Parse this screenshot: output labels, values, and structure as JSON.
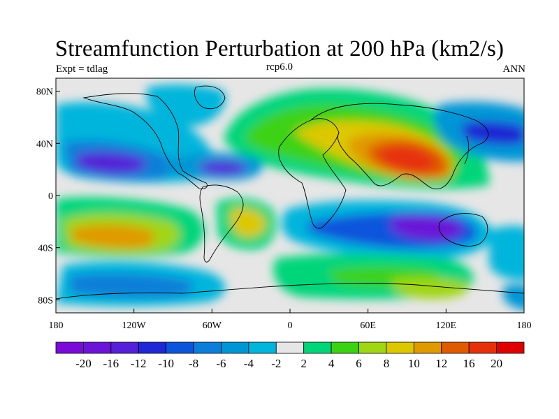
{
  "title": "Streamfunction Perturbation at 200 hPa (km2/s)",
  "left_label": "Expt = tdlag",
  "center_label": "rcp6.0",
  "right_label": "ANN",
  "lat_ticks": [
    {
      "label": "80N",
      "lat": 80
    },
    {
      "label": "40N",
      "lat": 40
    },
    {
      "label": "0",
      "lat": 0
    },
    {
      "label": "40S",
      "lat": -40
    },
    {
      "label": "80S",
      "lat": -80
    }
  ],
  "lon_ticks": [
    {
      "label": "180",
      "lon": -180
    },
    {
      "label": "120W",
      "lon": -120
    },
    {
      "label": "60W",
      "lon": -60
    },
    {
      "label": "0",
      "lon": 0
    },
    {
      "label": "60E",
      "lon": 60
    },
    {
      "label": "120E",
      "lon": 120
    },
    {
      "label": "180",
      "lon": 180
    }
  ],
  "colorbar": {
    "colors": [
      "#7a0ad8",
      "#6a14d8",
      "#5520d8",
      "#1f28d4",
      "#0b55dc",
      "#0a7ed8",
      "#0096d6",
      "#02b5dc",
      "#e6e6e6",
      "#00d57a",
      "#3cd214",
      "#a0d614",
      "#dcc800",
      "#e09a00",
      "#e05a00",
      "#e6300a",
      "#e00000"
    ],
    "labels": [
      "-20",
      "-16",
      "-12",
      "-10",
      "-8",
      "-6",
      "-4",
      "-2",
      "2",
      "4",
      "6",
      "8",
      "10",
      "12",
      "16",
      "20"
    ]
  }
}
